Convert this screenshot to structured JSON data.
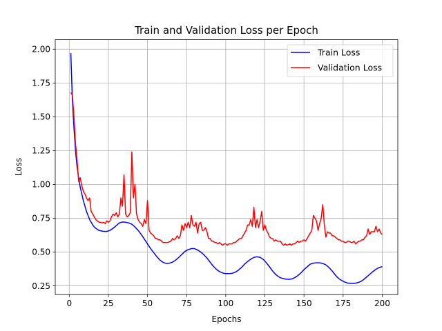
{
  "chart_data": {
    "type": "line",
    "title": "Train and Validation Loss per Epoch",
    "xlabel": "Epochs",
    "ylabel": "Loss",
    "xlim": [
      -8.95,
      209.95
    ],
    "ylim": [
      0.185,
      2.07
    ],
    "xticks": [
      0,
      25,
      50,
      75,
      100,
      125,
      150,
      175,
      200
    ],
    "xtick_labels": [
      "0",
      "25",
      "50",
      "75",
      "100",
      "125",
      "150",
      "175",
      "200"
    ],
    "yticks": [
      0.25,
      0.5,
      0.75,
      1.0,
      1.25,
      1.5,
      1.75,
      2.0
    ],
    "ytick_labels": [
      "0.25",
      "0.50",
      "0.75",
      "1.00",
      "1.25",
      "1.50",
      "1.75",
      "2.00"
    ],
    "grid": true,
    "legend_position": "top-right",
    "series": [
      {
        "name": "Train Loss",
        "color": "#0000ff",
        "points": [
          [
            1,
            1.97
          ],
          [
            2,
            1.62
          ],
          [
            3,
            1.42
          ],
          [
            4,
            1.25
          ],
          [
            5,
            1.13
          ],
          [
            6,
            1.05
          ],
          [
            7,
            0.98
          ],
          [
            8,
            0.93
          ],
          [
            9,
            0.88
          ],
          [
            10,
            0.84
          ],
          [
            11,
            0.8
          ],
          [
            12,
            0.77
          ],
          [
            13,
            0.74
          ],
          [
            14,
            0.72
          ],
          [
            15,
            0.7
          ],
          [
            16,
            0.685
          ],
          [
            17,
            0.675
          ],
          [
            18,
            0.667
          ],
          [
            19,
            0.66
          ],
          [
            20,
            0.657
          ],
          [
            22,
            0.652
          ],
          [
            24,
            0.652
          ],
          [
            26,
            0.66
          ],
          [
            28,
            0.675
          ],
          [
            30,
            0.695
          ],
          [
            32,
            0.715
          ],
          [
            34,
            0.722
          ],
          [
            36,
            0.72
          ],
          [
            38,
            0.715
          ],
          [
            40,
            0.705
          ],
          [
            42,
            0.685
          ],
          [
            44,
            0.66
          ],
          [
            46,
            0.63
          ],
          [
            48,
            0.595
          ],
          [
            50,
            0.56
          ],
          [
            52,
            0.525
          ],
          [
            54,
            0.495
          ],
          [
            56,
            0.465
          ],
          [
            58,
            0.44
          ],
          [
            60,
            0.423
          ],
          [
            62,
            0.415
          ],
          [
            64,
            0.417
          ],
          [
            66,
            0.425
          ],
          [
            68,
            0.44
          ],
          [
            70,
            0.46
          ],
          [
            72,
            0.483
          ],
          [
            74,
            0.505
          ],
          [
            76,
            0.518
          ],
          [
            78,
            0.525
          ],
          [
            80,
            0.525
          ],
          [
            82,
            0.515
          ],
          [
            84,
            0.5
          ],
          [
            86,
            0.48
          ],
          [
            88,
            0.455
          ],
          [
            90,
            0.425
          ],
          [
            92,
            0.395
          ],
          [
            94,
            0.372
          ],
          [
            96,
            0.355
          ],
          [
            98,
            0.345
          ],
          [
            100,
            0.34
          ],
          [
            102,
            0.34
          ],
          [
            104,
            0.342
          ],
          [
            106,
            0.35
          ],
          [
            108,
            0.365
          ],
          [
            110,
            0.385
          ],
          [
            112,
            0.41
          ],
          [
            114,
            0.43
          ],
          [
            116,
            0.447
          ],
          [
            118,
            0.46
          ],
          [
            120,
            0.465
          ],
          [
            122,
            0.46
          ],
          [
            124,
            0.445
          ],
          [
            126,
            0.42
          ],
          [
            128,
            0.39
          ],
          [
            130,
            0.358
          ],
          [
            132,
            0.333
          ],
          [
            134,
            0.315
          ],
          [
            136,
            0.305
          ],
          [
            138,
            0.3
          ],
          [
            140,
            0.298
          ],
          [
            142,
            0.3
          ],
          [
            144,
            0.31
          ],
          [
            146,
            0.325
          ],
          [
            148,
            0.345
          ],
          [
            150,
            0.37
          ],
          [
            152,
            0.39
          ],
          [
            154,
            0.41
          ],
          [
            156,
            0.418
          ],
          [
            158,
            0.42
          ],
          [
            160,
            0.42
          ],
          [
            162,
            0.415
          ],
          [
            164,
            0.405
          ],
          [
            166,
            0.385
          ],
          [
            168,
            0.36
          ],
          [
            170,
            0.33
          ],
          [
            172,
            0.305
          ],
          [
            174,
            0.29
          ],
          [
            176,
            0.278
          ],
          [
            178,
            0.27
          ],
          [
            180,
            0.268
          ],
          [
            182,
            0.268
          ],
          [
            184,
            0.272
          ],
          [
            186,
            0.28
          ],
          [
            188,
            0.295
          ],
          [
            190,
            0.315
          ],
          [
            192,
            0.335
          ],
          [
            194,
            0.355
          ],
          [
            196,
            0.372
          ],
          [
            198,
            0.385
          ],
          [
            200,
            0.392
          ]
        ]
      },
      {
        "name": "Validation Loss",
        "color": "#ff0000",
        "points": [
          [
            1,
            1.68
          ],
          [
            2,
            1.66
          ],
          [
            3,
            1.5
          ],
          [
            4,
            1.3
          ],
          [
            5,
            1.18
          ],
          [
            6,
            1.02
          ],
          [
            7,
            1.05
          ],
          [
            8,
            0.99
          ],
          [
            9,
            0.95
          ],
          [
            10,
            0.93
          ],
          [
            11,
            0.9
          ],
          [
            12,
            0.88
          ],
          [
            13,
            0.9
          ],
          [
            14,
            0.8
          ],
          [
            15,
            0.78
          ],
          [
            16,
            0.76
          ],
          [
            17,
            0.74
          ],
          [
            18,
            0.73
          ],
          [
            19,
            0.72
          ],
          [
            20,
            0.72
          ],
          [
            21,
            0.715
          ],
          [
            22,
            0.72
          ],
          [
            23,
            0.71
          ],
          [
            24,
            0.73
          ],
          [
            25,
            0.72
          ],
          [
            26,
            0.73
          ],
          [
            27,
            0.76
          ],
          [
            28,
            0.78
          ],
          [
            29,
            0.77
          ],
          [
            30,
            0.79
          ],
          [
            31,
            0.76
          ],
          [
            32,
            0.78
          ],
          [
            33,
            0.9
          ],
          [
            34,
            0.84
          ],
          [
            35,
            1.07
          ],
          [
            36,
            0.78
          ],
          [
            37,
            0.76
          ],
          [
            38,
            0.77
          ],
          [
            39,
            0.79
          ],
          [
            40,
            1.24
          ],
          [
            41,
            0.9
          ],
          [
            42,
            1.0
          ],
          [
            43,
            0.78
          ],
          [
            44,
            0.74
          ],
          [
            45,
            0.72
          ],
          [
            46,
            0.71
          ],
          [
            47,
            0.69
          ],
          [
            48,
            0.74
          ],
          [
            49,
            0.71
          ],
          [
            50,
            0.88
          ],
          [
            51,
            0.66
          ],
          [
            52,
            0.64
          ],
          [
            53,
            0.63
          ],
          [
            54,
            0.62
          ],
          [
            55,
            0.6
          ],
          [
            56,
            0.6
          ],
          [
            57,
            0.59
          ],
          [
            58,
            0.59
          ],
          [
            59,
            0.58
          ],
          [
            60,
            0.57
          ],
          [
            61,
            0.57
          ],
          [
            62,
            0.57
          ],
          [
            63,
            0.57
          ],
          [
            64,
            0.575
          ],
          [
            65,
            0.58
          ],
          [
            66,
            0.6
          ],
          [
            67,
            0.59
          ],
          [
            68,
            0.6
          ],
          [
            69,
            0.62
          ],
          [
            70,
            0.6
          ],
          [
            71,
            0.62
          ],
          [
            72,
            0.7
          ],
          [
            73,
            0.66
          ],
          [
            74,
            0.71
          ],
          [
            75,
            0.68
          ],
          [
            76,
            0.72
          ],
          [
            77,
            0.68
          ],
          [
            78,
            0.77
          ],
          [
            79,
            0.7
          ],
          [
            80,
            0.69
          ],
          [
            81,
            0.72
          ],
          [
            82,
            0.64
          ],
          [
            83,
            0.71
          ],
          [
            84,
            0.72
          ],
          [
            85,
            0.66
          ],
          [
            86,
            0.66
          ],
          [
            87,
            0.68
          ],
          [
            88,
            0.65
          ],
          [
            89,
            0.6
          ],
          [
            90,
            0.6
          ],
          [
            91,
            0.58
          ],
          [
            92,
            0.58
          ],
          [
            93,
            0.57
          ],
          [
            94,
            0.57
          ],
          [
            95,
            0.56
          ],
          [
            96,
            0.57
          ],
          [
            97,
            0.56
          ],
          [
            98,
            0.55
          ],
          [
            99,
            0.56
          ],
          [
            100,
            0.56
          ],
          [
            101,
            0.55
          ],
          [
            102,
            0.56
          ],
          [
            103,
            0.56
          ],
          [
            104,
            0.56
          ],
          [
            105,
            0.57
          ],
          [
            106,
            0.57
          ],
          [
            107,
            0.58
          ],
          [
            108,
            0.59
          ],
          [
            109,
            0.6
          ],
          [
            110,
            0.6
          ],
          [
            111,
            0.62
          ],
          [
            112,
            0.64
          ],
          [
            113,
            0.66
          ],
          [
            114,
            0.7
          ],
          [
            115,
            0.7
          ],
          [
            116,
            0.74
          ],
          [
            117,
            0.69
          ],
          [
            118,
            0.83
          ],
          [
            119,
            0.68
          ],
          [
            120,
            0.74
          ],
          [
            121,
            0.68
          ],
          [
            122,
            0.73
          ],
          [
            123,
            0.8
          ],
          [
            124,
            0.66
          ],
          [
            125,
            0.7
          ],
          [
            126,
            0.66
          ],
          [
            127,
            0.64
          ],
          [
            128,
            0.61
          ],
          [
            129,
            0.6
          ],
          [
            130,
            0.6
          ],
          [
            131,
            0.58
          ],
          [
            132,
            0.59
          ],
          [
            133,
            0.58
          ],
          [
            134,
            0.58
          ],
          [
            135,
            0.58
          ],
          [
            136,
            0.56
          ],
          [
            137,
            0.55
          ],
          [
            138,
            0.56
          ],
          [
            139,
            0.55
          ],
          [
            140,
            0.555
          ],
          [
            141,
            0.56
          ],
          [
            142,
            0.55
          ],
          [
            143,
            0.56
          ],
          [
            144,
            0.56
          ],
          [
            145,
            0.57
          ],
          [
            146,
            0.58
          ],
          [
            147,
            0.57
          ],
          [
            148,
            0.58
          ],
          [
            149,
            0.58
          ],
          [
            150,
            0.59
          ],
          [
            151,
            0.58
          ],
          [
            152,
            0.6
          ],
          [
            153,
            0.62
          ],
          [
            154,
            0.64
          ],
          [
            155,
            0.66
          ],
          [
            156,
            0.77
          ],
          [
            157,
            0.75
          ],
          [
            158,
            0.73
          ],
          [
            159,
            0.66
          ],
          [
            160,
            0.71
          ],
          [
            161,
            0.75
          ],
          [
            162,
            0.85
          ],
          [
            163,
            0.7
          ],
          [
            164,
            0.61
          ],
          [
            165,
            0.65
          ],
          [
            166,
            0.64
          ],
          [
            167,
            0.64
          ],
          [
            168,
            0.62
          ],
          [
            169,
            0.62
          ],
          [
            170,
            0.61
          ],
          [
            171,
            0.6
          ],
          [
            172,
            0.59
          ],
          [
            173,
            0.59
          ],
          [
            174,
            0.58
          ],
          [
            175,
            0.58
          ],
          [
            176,
            0.57
          ],
          [
            177,
            0.57
          ],
          [
            178,
            0.58
          ],
          [
            179,
            0.58
          ],
          [
            180,
            0.57
          ],
          [
            181,
            0.57
          ],
          [
            182,
            0.58
          ],
          [
            183,
            0.56
          ],
          [
            184,
            0.57
          ],
          [
            185,
            0.58
          ],
          [
            186,
            0.58
          ],
          [
            187,
            0.59
          ],
          [
            188,
            0.59
          ],
          [
            189,
            0.61
          ],
          [
            190,
            0.62
          ],
          [
            191,
            0.67
          ],
          [
            192,
            0.63
          ],
          [
            193,
            0.65
          ],
          [
            194,
            0.65
          ],
          [
            195,
            0.65
          ],
          [
            196,
            0.69
          ],
          [
            197,
            0.65
          ],
          [
            198,
            0.67
          ],
          [
            199,
            0.64
          ],
          [
            200,
            0.63
          ]
        ]
      }
    ]
  }
}
